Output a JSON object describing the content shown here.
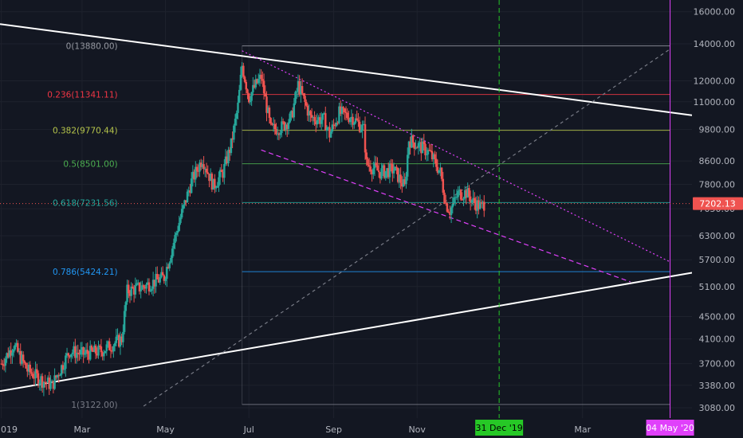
{
  "chart_data": {
    "type": "candlestick",
    "background": "#131722",
    "colors": {
      "up": "#26a69a",
      "down": "#ef5350"
    },
    "y_axis": {
      "scale": "log",
      "range": [
        2950,
        16800
      ],
      "ticks": [
        "16000.00",
        "14000.00",
        "12000.00",
        "11000.00",
        "9800.00",
        "8600.00",
        "7800.00",
        "7050.00",
        "6300.00",
        "5700.00",
        "5100.00",
        "4500.00",
        "4100.00",
        "3700.00",
        "3380.00",
        "3080.00"
      ],
      "tick_values": [
        16000,
        14000,
        12000,
        11000,
        9800,
        8600,
        7800,
        7050,
        6300,
        5700,
        5100,
        4500,
        4100,
        3700,
        3380,
        3080
      ]
    },
    "x_axis": {
      "labels": [
        "2019",
        "Mar",
        "May",
        "Jul",
        "Sep",
        "Nov",
        "Mar"
      ],
      "label_dates": [
        "2019-01-01",
        "2019-03-01",
        "2019-05-01",
        "2019-07-01",
        "2019-09-01",
        "2019-11-01",
        "2020-03-01"
      ],
      "range": [
        "2018-12-31",
        "2020-05-20"
      ]
    },
    "last_price": {
      "label": "7202.13",
      "value": 7202.13
    },
    "fibonacci": [
      {
        "label": "0(13880.00)",
        "value": 13880.0,
        "color": "#9598a1"
      },
      {
        "label": "0.236(11341.11)",
        "value": 11341.11,
        "color": "#f23645"
      },
      {
        "label": "0.382(9770.44)",
        "value": 9770.44,
        "color": "#b5c44a"
      },
      {
        "label": "0.5(8501.00)",
        "value": 8501.0,
        "color": "#4caf50"
      },
      {
        "label": "0.618(7231.56)",
        "value": 7231.56,
        "color": "#26a69a"
      },
      {
        "label": "0.786(5424.21)",
        "value": 5424.21,
        "color": "#2196f3"
      },
      {
        "label": "1(3122.00)",
        "value": 3122.0,
        "color": "#787b86"
      }
    ],
    "fib_range": [
      "2019-06-26",
      "2020-05-04"
    ],
    "vertical_markers": [
      {
        "label": "31 Dec '19",
        "date": "2019-12-31",
        "color": "#26c826",
        "text_color": "#000000"
      },
      {
        "label": "04 May '20",
        "date": "2020-05-04",
        "color": "#e040fb",
        "text_color": "#ffffff"
      }
    ],
    "trend_lines": [
      {
        "p1": [
          "2018-12-31",
          15200
        ],
        "p2": [
          "2020-05-20",
          10400
        ],
        "color": "#ffffff",
        "style": "solid"
      },
      {
        "p1": [
          "2018-12-31",
          3300
        ],
        "p2": [
          "2020-05-20",
          5400
        ],
        "color": "#ffffff",
        "style": "solid"
      },
      {
        "p1": [
          "2019-06-26",
          13600
        ],
        "p2": [
          "2020-05-04",
          5650
        ],
        "color": "#e040fb",
        "style": "dotted"
      },
      {
        "p1": [
          "2019-07-10",
          9000
        ],
        "p2": [
          "2020-04-05",
          5200
        ],
        "color": "#e040fb",
        "style": "dashed"
      },
      {
        "p1": [
          "2019-04-15",
          3100
        ],
        "p2": [
          "2020-05-04",
          13700
        ],
        "color": "#787b86",
        "style": "dashed"
      }
    ],
    "anchors": [
      [
        "2019-01-01",
        3700
      ],
      [
        "2019-01-10",
        4000
      ],
      [
        "2019-01-20",
        3600
      ],
      [
        "2019-01-31",
        3450
      ],
      [
        "2019-02-07",
        3380
      ],
      [
        "2019-02-20",
        3900
      ],
      [
        "2019-03-01",
        3850
      ],
      [
        "2019-03-15",
        3900
      ],
      [
        "2019-03-30",
        4100
      ],
      [
        "2019-04-03",
        5000
      ],
      [
        "2019-04-15",
        5100
      ],
      [
        "2019-04-30",
        5300
      ],
      [
        "2019-05-12",
        6800
      ],
      [
        "2019-05-20",
        7900
      ],
      [
        "2019-05-28",
        8700
      ],
      [
        "2019-06-05",
        7750
      ],
      [
        "2019-06-12",
        8200
      ],
      [
        "2019-06-18",
        9200
      ],
      [
        "2019-06-23",
        10800
      ],
      [
        "2019-06-26",
        12800
      ],
      [
        "2019-07-01",
        11200
      ],
      [
        "2019-07-06",
        11800
      ],
      [
        "2019-07-10",
        12200
      ],
      [
        "2019-07-17",
        9800
      ],
      [
        "2019-07-25",
        9900
      ],
      [
        "2019-08-01",
        10300
      ],
      [
        "2019-08-06",
        11800
      ],
      [
        "2019-08-15",
        10300
      ],
      [
        "2019-08-25",
        10200
      ],
      [
        "2019-08-29",
        9600
      ],
      [
        "2019-09-05",
        10500
      ],
      [
        "2019-09-15",
        10300
      ],
      [
        "2019-09-23",
        9800
      ],
      [
        "2019-09-25",
        8500
      ],
      [
        "2019-10-05",
        8200
      ],
      [
        "2019-10-15",
        8300
      ],
      [
        "2019-10-23",
        7700
      ],
      [
        "2019-10-26",
        9400
      ],
      [
        "2019-11-01",
        9200
      ],
      [
        "2019-11-10",
        8900
      ],
      [
        "2019-11-18",
        8200
      ],
      [
        "2019-11-22",
        7200
      ],
      [
        "2019-11-25",
        7000
      ],
      [
        "2019-12-01",
        7500
      ],
      [
        "2019-12-07",
        7550
      ],
      [
        "2019-12-12",
        7250
      ],
      [
        "2019-12-18",
        7100
      ],
      [
        "2019-12-20",
        7202
      ]
    ]
  }
}
